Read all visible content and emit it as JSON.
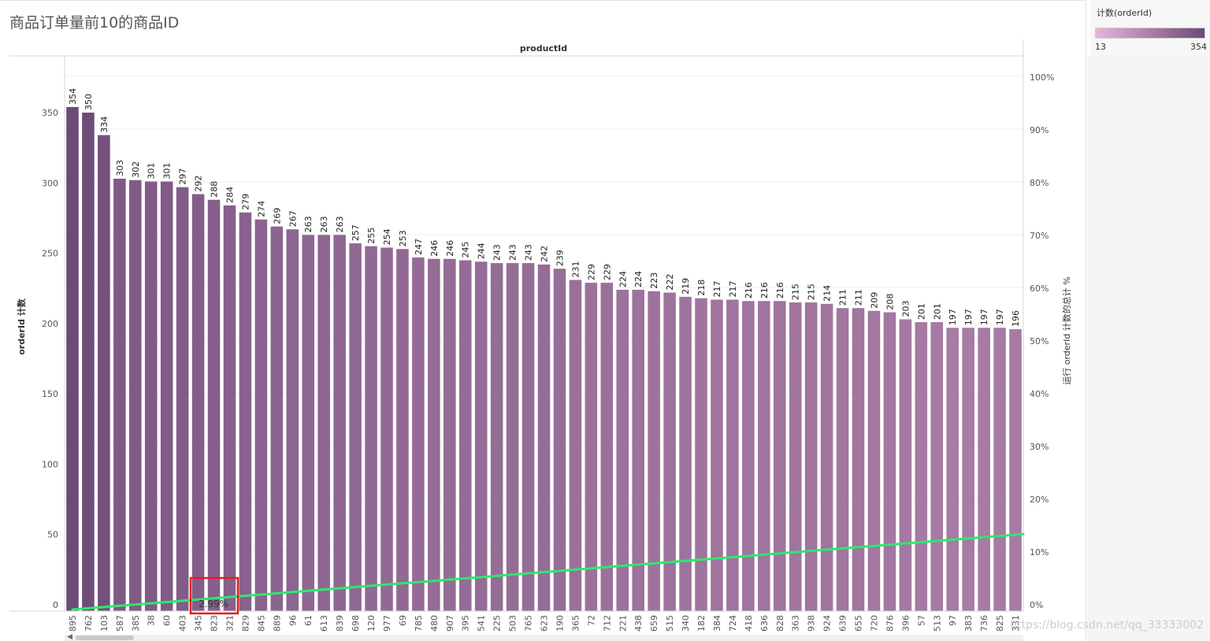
{
  "title": "商品订单量前10的商品ID",
  "watermark": "https://blog.csdn.net/qq_33333002",
  "legend": {
    "title": "计数(orderId)",
    "min": "13",
    "max": "354",
    "color_low": "#e8b4d8",
    "color_high": "#6e4a78"
  },
  "annotation": {
    "label": "2.99%",
    "box_color": "#e02020"
  },
  "colors": {
    "line": "#2ee86a"
  },
  "chart_data": {
    "type": "bar",
    "title": "商品订单量前10的商品ID",
    "xlabel": "productId",
    "ylabel": "orderId 计数",
    "y2label": "运行 orderId 计数的总计 %",
    "ylim": [
      0,
      380
    ],
    "y2lim": [
      0,
      104
    ],
    "yticks": [
      0,
      50,
      100,
      150,
      200,
      250,
      300,
      350
    ],
    "y2ticks": [
      "0%",
      "10%",
      "20%",
      "30%",
      "40%",
      "50%",
      "60%",
      "70%",
      "80%",
      "90%",
      "100%"
    ],
    "categories": [
      "895",
      "762",
      "103",
      "587",
      "385",
      "38",
      "60",
      "403",
      "345",
      "823",
      "321",
      "829",
      "845",
      "889",
      "96",
      "61",
      "613",
      "839",
      "698",
      "120",
      "977",
      "69",
      "785",
      "480",
      "907",
      "395",
      "541",
      "225",
      "503",
      "765",
      "623",
      "190",
      "365",
      "72",
      "712",
      "221",
      "438",
      "659",
      "515",
      "340",
      "182",
      "384",
      "724",
      "418",
      "636",
      "828",
      "363",
      "938",
      "924",
      "639",
      "655",
      "720",
      "876",
      "396",
      "57",
      "513",
      "97",
      "383",
      "736",
      "825",
      "331"
    ],
    "series": [
      {
        "values": [
          354,
          350,
          334,
          303,
          302,
          301,
          301,
          297,
          292,
          288,
          284,
          279,
          274,
          269,
          267,
          263,
          263,
          263,
          257,
          255,
          254,
          253,
          247,
          246,
          246,
          245,
          244,
          243,
          243,
          243,
          242,
          239,
          231,
          229,
          229,
          224,
          224,
          223,
          222,
          219,
          218,
          217,
          217,
          216,
          216,
          216,
          215,
          215,
          214,
          211,
          211,
          209,
          208,
          203,
          201,
          201,
          197,
          197,
          197,
          197,
          196
        ]
      },
      {
        "type": "line",
        "start_percent": 0,
        "end_percent": 14.3
      }
    ],
    "grid": true
  }
}
